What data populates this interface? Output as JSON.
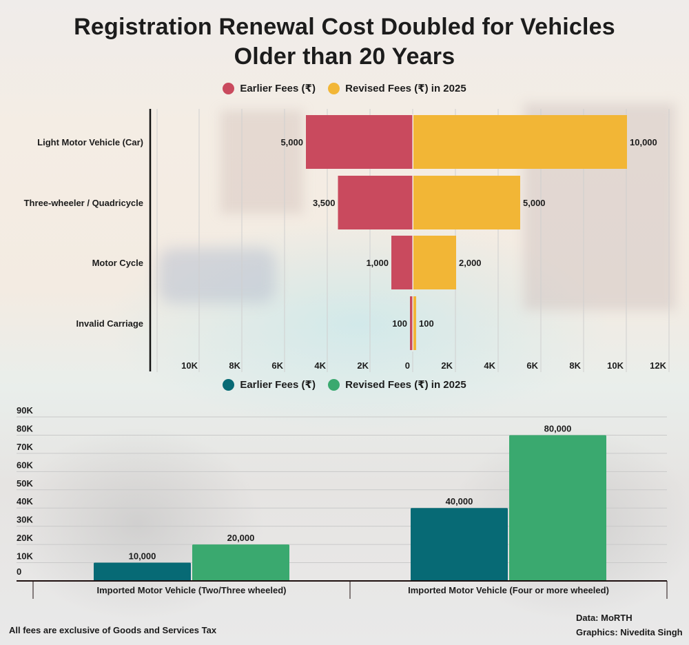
{
  "title_line1": "Registration Renewal Cost Doubled for Vehicles",
  "title_line2": "Older than 20 Years",
  "chart_data": [
    {
      "type": "bar",
      "orientation": "horizontal-diverging",
      "categories": [
        "Light Motor Vehicle (Car)",
        "Three-wheeler / Quadricycle",
        "Motor Cycle",
        "Invalid Carriage"
      ],
      "series": [
        {
          "name": "Earlier Fees (₹)",
          "color": "#c94a5e",
          "values": [
            5000,
            3500,
            1000,
            100
          ],
          "labels": [
            "5,000",
            "3,500",
            "1,000",
            "100"
          ],
          "side": "left"
        },
        {
          "name": "Revised Fees (₹) in 2025",
          "color": "#f2b636",
          "values": [
            10000,
            5000,
            2000,
            100
          ],
          "labels": [
            "10,000",
            "5,000",
            "2,000",
            "100"
          ],
          "side": "right"
        }
      ],
      "xlim_left": [
        0,
        10000
      ],
      "xlim_right": [
        0,
        12000
      ],
      "x_ticks_left": [
        "10K",
        "8K",
        "6K",
        "4K",
        "2K"
      ],
      "x_ticks_right": [
        "0",
        "2K",
        "4K",
        "6K",
        "8K",
        "10K",
        "12K"
      ],
      "legend_position": "top",
      "grid": true
    },
    {
      "type": "bar",
      "orientation": "vertical",
      "categories": [
        "Imported Motor Vehicle (Two/Three wheeled)",
        "Imported Motor Vehicle (Four or more wheeled)"
      ],
      "series": [
        {
          "name": "Earlier Fees (₹)",
          "color": "#076a75",
          "values": [
            10000,
            40000
          ],
          "labels": [
            "10,000",
            "40,000"
          ]
        },
        {
          "name": "Revised Fees (₹) in 2025",
          "color": "#3aa96f",
          "values": [
            20000,
            80000
          ],
          "labels": [
            "20,000",
            "80,000"
          ]
        }
      ],
      "ylim": [
        0,
        90000
      ],
      "y_ticks": [
        "0",
        "10K",
        "20K",
        "30K",
        "40K",
        "50K",
        "60K",
        "70K",
        "80K",
        "90K"
      ],
      "legend_position": "top",
      "grid": true
    }
  ],
  "footer": {
    "note": "All fees are exclusive of Goods and Services Tax",
    "source": "Data: MoRTH",
    "credit": "Graphics: Nivedita Singh"
  }
}
